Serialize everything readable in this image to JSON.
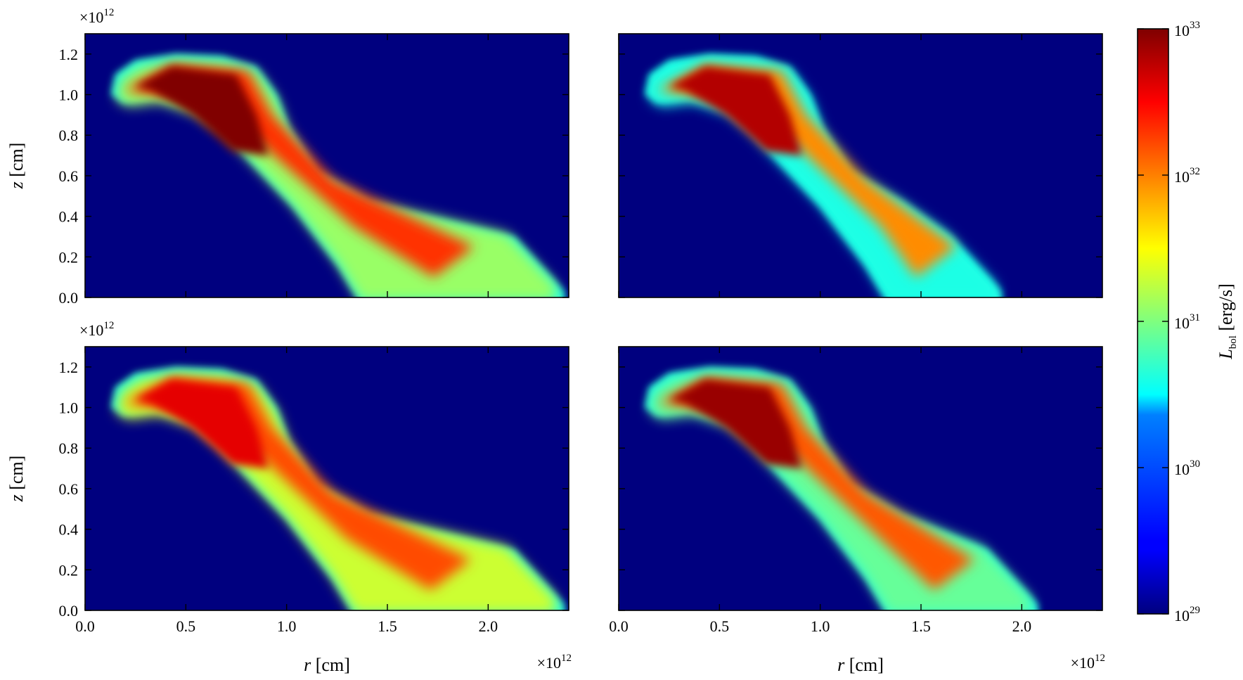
{
  "chart_data": [
    {
      "type": "heatmap",
      "panel": "top-left",
      "xlabel": "",
      "ylabel": "z [cm]",
      "xlim": [
        0.0,
        2.4
      ],
      "ylim": [
        0.0,
        1.3
      ],
      "x_ticks": [
        "0.0",
        "0.5",
        "1.0",
        "1.5",
        "2.0"
      ],
      "y_ticks": [
        "0.0",
        "0.2",
        "0.4",
        "0.6",
        "0.8",
        "1.0",
        "1.2"
      ],
      "x_multiplier": "",
      "y_multiplier": "×10",
      "y_multiplier_exp": "12",
      "x_tick_labels_shown": false,
      "y_tick_labels_shown": true,
      "plume": {
        "head_start": [
          0.13,
          1.0
        ],
        "head_top_z": 1.2,
        "tail_end_r": [
          1.38,
          2.38
        ],
        "peak_log_luminosity": 33.0,
        "tail_log_luminosity": 30.8
      }
    },
    {
      "type": "heatmap",
      "panel": "top-right",
      "xlabel": "",
      "ylabel": "",
      "xlim": [
        0.0,
        2.4
      ],
      "ylim": [
        0.0,
        1.3
      ],
      "x_ticks": [
        "0.0",
        "0.5",
        "1.0",
        "1.5",
        "2.0"
      ],
      "y_ticks": [
        "0.0",
        "0.2",
        "0.4",
        "0.6",
        "0.8",
        "1.0",
        "1.2"
      ],
      "x_multiplier": "",
      "y_multiplier": "",
      "x_tick_labels_shown": false,
      "y_tick_labels_shown": false,
      "plume": {
        "head_start": [
          0.13,
          1.0
        ],
        "head_top_z": 1.2,
        "tail_end_r": [
          1.35,
          1.9
        ],
        "peak_log_luminosity": 32.8,
        "tail_log_luminosity": 30.3
      }
    },
    {
      "type": "heatmap",
      "panel": "bottom-left",
      "xlabel": "r [cm]",
      "ylabel": "z [cm]",
      "xlim": [
        0.0,
        2.4
      ],
      "ylim": [
        0.0,
        1.3
      ],
      "x_ticks": [
        "0.0",
        "0.5",
        "1.0",
        "1.5",
        "2.0"
      ],
      "y_ticks": [
        "0.0",
        "0.2",
        "0.4",
        "0.6",
        "0.8",
        "1.0",
        "1.2"
      ],
      "x_multiplier": "×10",
      "x_multiplier_exp": "12",
      "y_multiplier": "×10",
      "y_multiplier_exp": "12",
      "x_tick_labels_shown": true,
      "y_tick_labels_shown": true,
      "plume": {
        "head_start": [
          0.13,
          1.0
        ],
        "head_top_z": 1.2,
        "tail_end_r": [
          1.35,
          2.38
        ],
        "peak_log_luminosity": 32.6,
        "tail_log_luminosity": 31.0
      }
    },
    {
      "type": "heatmap",
      "panel": "bottom-right",
      "xlabel": "r [cm]",
      "ylabel": "",
      "xlim": [
        0.0,
        2.4
      ],
      "ylim": [
        0.0,
        1.3
      ],
      "x_ticks": [
        "0.0",
        "0.5",
        "1.0",
        "1.5",
        "2.0"
      ],
      "y_ticks": [
        "0.0",
        "0.2",
        "0.4",
        "0.6",
        "0.8",
        "1.0",
        "1.2"
      ],
      "x_multiplier": "×10",
      "x_multiplier_exp": "12",
      "y_multiplier": "",
      "x_tick_labels_shown": true,
      "y_tick_labels_shown": false,
      "plume": {
        "head_start": [
          0.13,
          1.0
        ],
        "head_top_z": 1.2,
        "tail_end_r": [
          1.35,
          2.08
        ],
        "peak_log_luminosity": 32.9,
        "tail_log_luminosity": 30.6
      }
    }
  ],
  "colorbar": {
    "label": "L",
    "label_sub": "bol",
    "label_unit": " [erg/s]",
    "scale": "log",
    "range": [
      29,
      33
    ],
    "colormap": "jet",
    "ticks": [
      {
        "base": "10",
        "exp": "33",
        "value": 33
      },
      {
        "base": "10",
        "exp": "32",
        "value": 32
      },
      {
        "base": "10",
        "exp": "31",
        "value": 31
      },
      {
        "base": "10",
        "exp": "30",
        "value": 30
      },
      {
        "base": "10",
        "exp": "29",
        "value": 29
      }
    ],
    "background_color": "#00007f"
  }
}
